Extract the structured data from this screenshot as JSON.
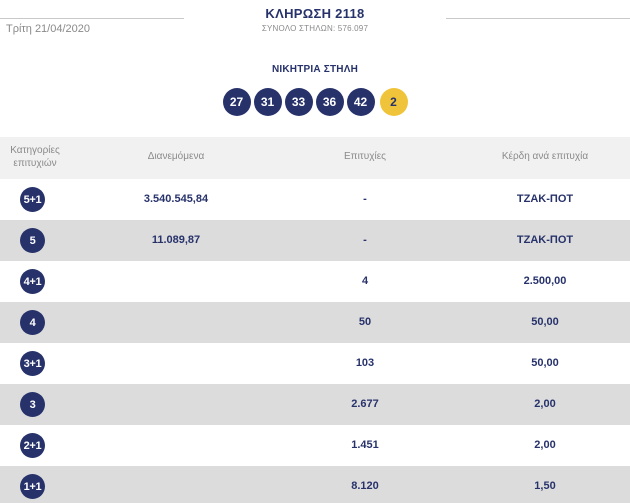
{
  "header": {
    "draw_title": "ΚΛΗΡΩΣΗ 2118",
    "total_columns": "ΣΥΝΟΛΟ ΣΤΗΛΩΝ: 576.097",
    "date": "Τρίτη 21/04/2020"
  },
  "winning": {
    "label": "ΝΙΚΗΤΡΙΑ ΣΤΗΛΗ",
    "numbers": [
      "27",
      "31",
      "33",
      "36",
      "42"
    ],
    "joker": "2",
    "colors": {
      "main_ball": "#27326b",
      "joker_ball": "#f0c43a"
    }
  },
  "table": {
    "headers": {
      "category_line1": "Κατηγορίες",
      "category_line2": "επιτυχιών",
      "distributed": "Διανεμόμενα",
      "winners": "Επιτυχίες",
      "prize": "Κέρδη ανά επιτυχία"
    },
    "rows": [
      {
        "category": "5+1",
        "distributed": "3.540.545,84",
        "winners": "-",
        "prize": "ΤΖΑΚ-ΠΟΤ"
      },
      {
        "category": "5",
        "distributed": "11.089,87",
        "winners": "-",
        "prize": "ΤΖΑΚ-ΠΟΤ"
      },
      {
        "category": "4+1",
        "distributed": "",
        "winners": "4",
        "prize": "2.500,00"
      },
      {
        "category": "4",
        "distributed": "",
        "winners": "50",
        "prize": "50,00"
      },
      {
        "category": "3+1",
        "distributed": "",
        "winners": "103",
        "prize": "50,00"
      },
      {
        "category": "3",
        "distributed": "",
        "winners": "2.677",
        "prize": "2,00"
      },
      {
        "category": "2+1",
        "distributed": "",
        "winners": "1.451",
        "prize": "2,00"
      },
      {
        "category": "1+1",
        "distributed": "",
        "winners": "8.120",
        "prize": "1,50"
      }
    ]
  }
}
